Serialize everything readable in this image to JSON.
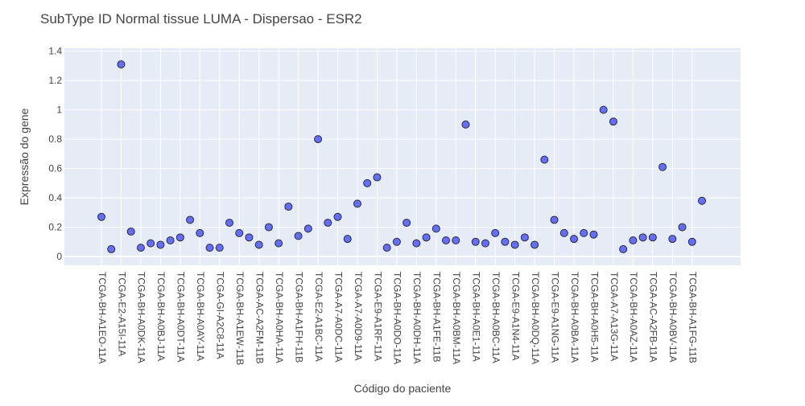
{
  "chart_data": {
    "type": "scatter",
    "title": "SubType ID Normal tissue LUMA - Dispersao - ESR2",
    "xlabel": "Código do paciente",
    "ylabel": "Expressão do gene",
    "ylim": [
      -0.06,
      1.42
    ],
    "yticks": [
      0,
      0.2,
      0.4,
      0.6,
      0.8,
      1,
      1.2,
      1.4
    ],
    "ytick_labels": [
      "0",
      "0.2",
      "0.4",
      "0.6",
      "0.8",
      "1",
      "1.2",
      "1.4"
    ],
    "grid": true,
    "x_tick_labels": [
      "TCGA-BH-A1EO-11A",
      "TCGA-E2-A15I-11A",
      "TCGA-BH-A0DK-11A",
      "TCGA-BH-A0BJ-11A",
      "TCGA-BH-A0DT-11A",
      "TCGA-BH-A0AY-11A",
      "TCGA-GI-A2C8-11A",
      "TCGA-BH-A1EW-11B",
      "TCGA-AC-A2FM-11B",
      "TCGA-BH-A0HA-11A",
      "TCGA-BH-A1FH-11B",
      "TCGA-E2-A1BC-11A",
      "TCGA-A7-A0DC-11A",
      "TCGA-A7-A0D9-11A",
      "TCGA-E9-A1RF-11A",
      "TCGA-BH-A0DO-11A",
      "TCGA-BH-A0DH-11A",
      "TCGA-BH-A1FE-11B",
      "TCGA-BH-A0BM-11A",
      "TCGA-BH-A0E1-11A",
      "TCGA-BH-A0BC-11A",
      "TCGA-E9-A1N4-11A",
      "TCGA-BH-A0DQ-11A",
      "TCGA-E9-A1NG-11A",
      "TCGA-BH-A0BA-11A",
      "TCGA-BH-A0H5-11A",
      "TCGA-A7-A13G-11A",
      "TCGA-BH-A0AZ-11A",
      "TCGA-AC-A2FB-11A",
      "TCGA-BH-A0BV-11A",
      "TCGA-BH-A1FG-11B"
    ],
    "points_y": [
      0.27,
      0.05,
      1.31,
      0.17,
      0.06,
      0.09,
      0.08,
      0.11,
      0.13,
      0.25,
      0.16,
      0.06,
      0.06,
      0.23,
      0.16,
      0.13,
      0.08,
      0.2,
      0.09,
      0.34,
      0.14,
      0.19,
      0.8,
      0.23,
      0.27,
      0.12,
      0.36,
      0.5,
      0.54,
      0.06,
      0.1,
      0.23,
      0.09,
      0.13,
      0.19,
      0.11,
      0.11,
      0.9,
      0.1,
      0.09,
      0.16,
      0.1,
      0.08,
      0.13,
      0.08,
      0.66,
      0.25,
      0.16,
      0.12,
      0.16,
      0.15,
      1.0,
      0.92,
      0.05,
      0.11,
      0.13,
      0.13,
      0.61,
      0.12,
      0.2,
      0.1,
      0.38
    ],
    "marker_color": "#636efa",
    "marker_edge": "#2a2a3a",
    "plot_bg": "#e5ecf6"
  }
}
